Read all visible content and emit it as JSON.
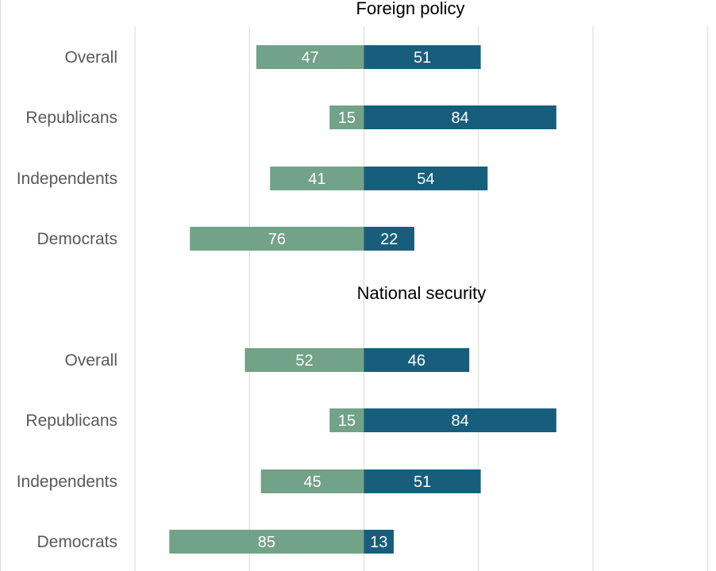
{
  "colors": {
    "left_series": "#72a287",
    "right_series": "#175e7d",
    "grid": "#d9d9d9",
    "row_label": "#595959",
    "title": "#000000",
    "value_label": "#ffffff"
  },
  "chart_data": [
    {
      "type": "bar",
      "orientation": "diverging-horizontal",
      "title": "Foreign policy",
      "categories": [
        "Overall",
        "Republicans",
        "Independents",
        "Democrats"
      ],
      "series": [
        {
          "side": "left",
          "values": [
            47,
            15,
            41,
            76
          ]
        },
        {
          "side": "right",
          "values": [
            51,
            84,
            54,
            22
          ]
        }
      ],
      "xlim": [
        -100,
        150
      ],
      "grid": true,
      "grid_values": [
        -100,
        -50,
        0,
        50,
        100,
        150
      ],
      "data_labels": true
    },
    {
      "type": "bar",
      "orientation": "diverging-horizontal",
      "title": "National security",
      "categories": [
        "Overall",
        "Republicans",
        "Independents",
        "Democrats"
      ],
      "series": [
        {
          "side": "left",
          "values": [
            52,
            15,
            45,
            85
          ]
        },
        {
          "side": "right",
          "values": [
            46,
            84,
            51,
            13
          ]
        }
      ],
      "xlim": [
        -100,
        150
      ],
      "grid": true,
      "grid_values": [
        -100,
        -50,
        0,
        50,
        100,
        150
      ],
      "data_labels": true
    }
  ]
}
